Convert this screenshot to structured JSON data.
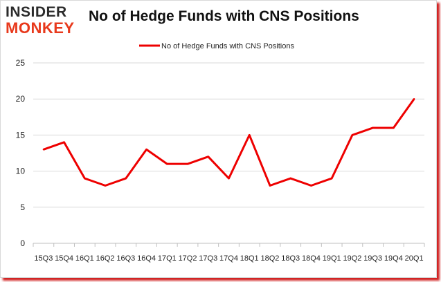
{
  "logo": {
    "line1": "INSIDER",
    "line2": "MONKEY"
  },
  "chart_data": {
    "type": "line",
    "title": "No of Hedge Funds with CNS Positions",
    "xlabel": "",
    "ylabel": "",
    "categories": [
      "15Q3",
      "15Q4",
      "16Q1",
      "16Q2",
      "16Q3",
      "16Q4",
      "17Q1",
      "17Q2",
      "17Q3",
      "17Q4",
      "18Q1",
      "18Q2",
      "18Q3",
      "18Q4",
      "19Q1",
      "19Q2",
      "19Q3",
      "19Q4",
      "20Q1"
    ],
    "series": [
      {
        "name": "No of Hedge Funds with CNS Positions",
        "values": [
          13,
          14,
          9,
          8,
          9,
          13,
          11,
          11,
          12,
          9,
          15,
          8,
          9,
          8,
          9,
          15,
          16,
          16,
          20
        ],
        "color": "#ee0000"
      }
    ],
    "ylim": [
      0,
      25
    ],
    "yticks": [
      0,
      5,
      10,
      15,
      20,
      25
    ],
    "grid": true,
    "legend": "top-center"
  }
}
